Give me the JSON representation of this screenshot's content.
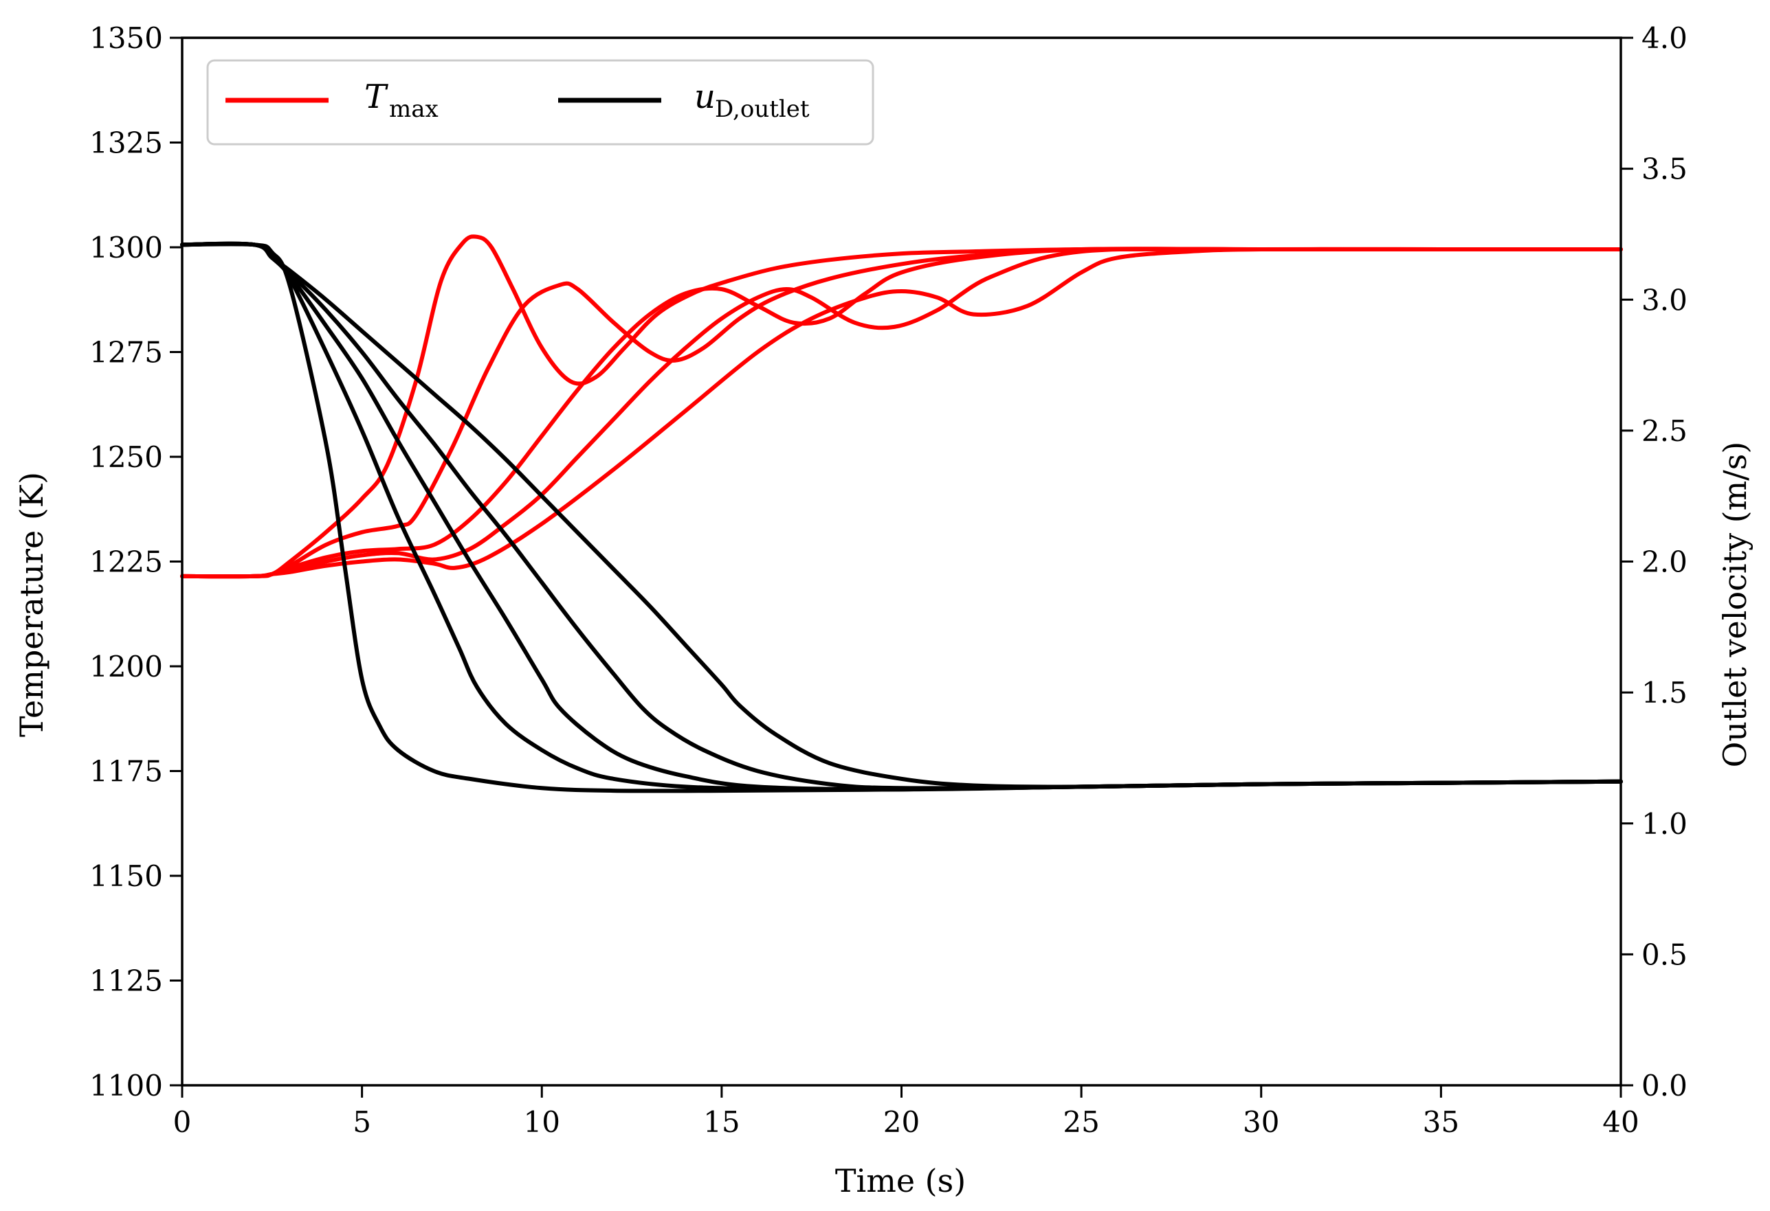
{
  "chart_data": {
    "type": "line",
    "xlabel": "Time (s)",
    "ylabel_left": "Temperature (K)",
    "ylabel_right": "Outlet velocity (m/s)",
    "xlim": [
      0,
      40
    ],
    "ylim_left": [
      1100,
      1350
    ],
    "ylim_right": [
      0.0,
      4.0
    ],
    "x_ticks": [
      "0",
      "5",
      "10",
      "15",
      "20",
      "25",
      "30",
      "35",
      "40"
    ],
    "y_left_ticks": [
      "1100",
      "1125",
      "1150",
      "1175",
      "1200",
      "1225",
      "1250",
      "1275",
      "1300",
      "1325",
      "1350"
    ],
    "y_right_ticks": [
      "0.0",
      "0.5",
      "1.0",
      "1.5",
      "2.0",
      "2.5",
      "3.0",
      "3.5",
      "4.0"
    ],
    "legend": [
      {
        "name": "T",
        "subscript": "max",
        "color": "#ff0000"
      },
      {
        "name": "u",
        "subscript": "D,outlet",
        "color": "#000000"
      }
    ],
    "legend_position": "top-left",
    "series_temperature": [
      {
        "name": "T_max case 1",
        "color": "#ff0000",
        "axis": "left",
        "x": [
          0,
          2,
          2.5,
          3,
          4,
          5,
          5.7,
          6.5,
          7.2,
          7.8,
          8.2,
          8.6,
          9.2,
          10,
          10.8,
          11.5,
          12.3,
          13.2,
          14.2,
          15.2,
          16.5,
          18,
          20,
          22,
          25,
          30,
          35,
          40
        ],
        "y": [
          1221.5,
          1221.5,
          1222,
          1225,
          1232,
          1240,
          1248,
          1268,
          1292,
          1301,
          1302.5,
          1300,
          1290,
          1276,
          1268,
          1269,
          1276,
          1284,
          1289,
          1292,
          1295,
          1297,
          1298.5,
          1299,
          1299.5,
          1299.5,
          1299.5,
          1299.5
        ]
      },
      {
        "name": "T_max case 2",
        "color": "#ff0000",
        "axis": "left",
        "x": [
          0,
          2,
          2.5,
          3,
          4,
          5,
          6,
          6.5,
          7.5,
          8.5,
          9.5,
          10.5,
          11,
          12,
          13,
          13.7,
          14.5,
          15.5,
          16.5,
          18,
          20,
          22,
          25,
          30,
          35,
          40
        ],
        "y": [
          1221.5,
          1221.5,
          1222,
          1224,
          1229,
          1232,
          1233.5,
          1236,
          1252,
          1271,
          1286,
          1291,
          1290,
          1282,
          1275,
          1273,
          1276,
          1283,
          1288,
          1292.5,
          1296,
          1298,
          1299.5,
          1299.5,
          1299.5,
          1299.5
        ]
      },
      {
        "name": "T_max case 3",
        "color": "#ff0000",
        "axis": "left",
        "x": [
          0,
          2,
          2.5,
          3,
          4,
          5,
          6,
          7,
          8,
          9,
          10,
          11,
          12,
          13,
          14,
          15,
          16,
          17,
          18,
          19,
          20,
          22,
          25,
          30,
          35,
          40
        ],
        "y": [
          1221.5,
          1221.5,
          1222,
          1223.5,
          1226,
          1227.5,
          1228,
          1229,
          1235,
          1244,
          1255,
          1266,
          1276,
          1284,
          1289,
          1290,
          1286,
          1282,
          1283,
          1289,
          1294,
          1297.5,
          1299.5,
          1299.5,
          1299.5,
          1299.5
        ]
      },
      {
        "name": "T_max case 4",
        "color": "#ff0000",
        "axis": "left",
        "x": [
          0,
          2,
          2.5,
          3,
          4,
          5,
          6,
          7,
          8,
          9,
          10,
          11,
          12,
          13,
          14,
          15,
          16,
          16.8,
          17.5,
          18.7,
          19.8,
          21,
          22.5,
          25,
          30,
          35,
          40
        ],
        "y": [
          1221.5,
          1221.5,
          1222,
          1223,
          1225,
          1226.5,
          1227,
          1225.5,
          1228,
          1234,
          1241,
          1250,
          1259,
          1268,
          1276,
          1283,
          1288,
          1290,
          1288,
          1282,
          1281,
          1285,
          1293,
          1299,
          1299.5,
          1299.5,
          1299.5
        ]
      },
      {
        "name": "T_max case 5",
        "color": "#ff0000",
        "axis": "left",
        "x": [
          0,
          2,
          2.5,
          3,
          4,
          5,
          6,
          7,
          7.6,
          8.5,
          10,
          12,
          14,
          16,
          17.5,
          19,
          20,
          21,
          22,
          23.5,
          25,
          26,
          28,
          30,
          35,
          40
        ],
        "y": [
          1221.5,
          1221.5,
          1222,
          1222.5,
          1224,
          1225,
          1225.5,
          1224.5,
          1223.5,
          1226,
          1234,
          1247,
          1261,
          1275,
          1283,
          1288,
          1289.5,
          1288,
          1284,
          1286,
          1294,
          1297.5,
          1299,
          1299.5,
          1299.5,
          1299.5
        ]
      }
    ],
    "series_velocity": [
      {
        "name": "u_D,outlet case 1",
        "color": "#000000",
        "axis": "right",
        "x": [
          0,
          2,
          2.5,
          3,
          4,
          4.5,
          5,
          5.5,
          6,
          7,
          8,
          10,
          12,
          15,
          20,
          25,
          30,
          35,
          40
        ],
        "y": [
          3.21,
          3.21,
          3.18,
          3.05,
          2.45,
          2.0,
          1.55,
          1.37,
          1.28,
          1.2,
          1.17,
          1.135,
          1.125,
          1.125,
          1.13,
          1.14,
          1.15,
          1.155,
          1.16
        ]
      },
      {
        "name": "u_D,outlet case 2",
        "color": "#000000",
        "axis": "right",
        "x": [
          0,
          2,
          2.5,
          3,
          4,
          5,
          6,
          7,
          7.7,
          8.2,
          9,
          10,
          11,
          12,
          14,
          17,
          20,
          25,
          30,
          35,
          40
        ],
        "y": [
          3.21,
          3.21,
          3.17,
          3.08,
          2.8,
          2.5,
          2.17,
          1.88,
          1.67,
          1.52,
          1.38,
          1.28,
          1.21,
          1.17,
          1.14,
          1.13,
          1.13,
          1.14,
          1.15,
          1.155,
          1.16
        ]
      },
      {
        "name": "u_D,outlet case 3",
        "color": "#000000",
        "axis": "right",
        "x": [
          0,
          2,
          2.5,
          3,
          4,
          5,
          6,
          7,
          8,
          9,
          10,
          10.5,
          11.5,
          12.5,
          14,
          16,
          20,
          25,
          30,
          35,
          40
        ],
        "y": [
          3.21,
          3.21,
          3.16,
          3.09,
          2.9,
          2.7,
          2.46,
          2.23,
          2.0,
          1.78,
          1.55,
          1.44,
          1.32,
          1.24,
          1.18,
          1.14,
          1.13,
          1.14,
          1.15,
          1.155,
          1.16
        ]
      },
      {
        "name": "u_D,outlet case 4",
        "color": "#000000",
        "axis": "right",
        "x": [
          0,
          2,
          2.5,
          3,
          4,
          5,
          6,
          7,
          8,
          9,
          10,
          11,
          12,
          12.8,
          13.5,
          14.5,
          16,
          18,
          20,
          25,
          30,
          35,
          40
        ],
        "y": [
          3.21,
          3.21,
          3.16,
          3.1,
          2.96,
          2.8,
          2.62,
          2.45,
          2.27,
          2.1,
          1.92,
          1.74,
          1.57,
          1.44,
          1.36,
          1.28,
          1.2,
          1.15,
          1.135,
          1.14,
          1.15,
          1.155,
          1.16
        ]
      },
      {
        "name": "u_D,outlet case 5",
        "color": "#000000",
        "axis": "right",
        "x": [
          0,
          2,
          2.5,
          3,
          4,
          5,
          6,
          7,
          8,
          9,
          10,
          11,
          12,
          13,
          14,
          15,
          15.5,
          16.5,
          18,
          20,
          22,
          25,
          30,
          35,
          40
        ],
        "y": [
          3.21,
          3.21,
          3.16,
          3.11,
          3.0,
          2.88,
          2.76,
          2.64,
          2.52,
          2.39,
          2.25,
          2.11,
          1.97,
          1.83,
          1.68,
          1.53,
          1.45,
          1.34,
          1.23,
          1.17,
          1.145,
          1.14,
          1.15,
          1.155,
          1.16
        ]
      }
    ]
  }
}
